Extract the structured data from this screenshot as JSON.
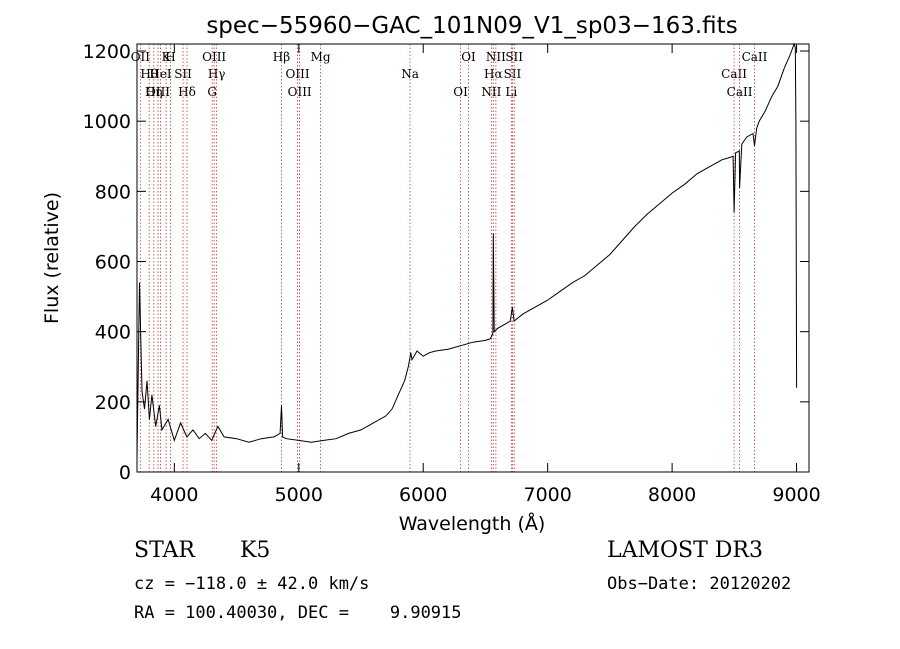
{
  "chart_data": {
    "type": "line",
    "title": "spec−55960−GAC_101N09_V1_sp03−163.fits",
    "xlabel": "Wavelength (Å)",
    "ylabel": "Flux (relative)",
    "xlim": [
      3700,
      9100
    ],
    "ylim": [
      0,
      1220
    ],
    "x_ticks": [
      4000,
      5000,
      6000,
      7000,
      8000,
      9000
    ],
    "x_tick_labels": [
      "4000",
      "5000",
      "6000",
      "7000",
      "8000",
      "9000"
    ],
    "y_ticks": [
      0,
      200,
      400,
      600,
      800,
      1000,
      1200
    ],
    "y_tick_labels": [
      "0",
      "200",
      "400",
      "600",
      "800",
      "1000",
      "1200"
    ],
    "series": [
      {
        "name": "flux",
        "x": [
          3700,
          3720,
          3740,
          3760,
          3780,
          3800,
          3820,
          3850,
          3880,
          3900,
          3950,
          4000,
          4050,
          4100,
          4150,
          4200,
          4250,
          4300,
          4350,
          4400,
          4500,
          4600,
          4700,
          4800,
          4850,
          4861,
          4870,
          4900,
          5000,
          5100,
          5200,
          5300,
          5400,
          5500,
          5600,
          5700,
          5750,
          5800,
          5850,
          5880,
          5900,
          5910,
          5950,
          6000,
          6050,
          6100,
          6200,
          6300,
          6400,
          6500,
          6540,
          6560,
          6563,
          6570,
          6600,
          6650,
          6700,
          6717,
          6730,
          6800,
          6900,
          7000,
          7100,
          7200,
          7300,
          7400,
          7500,
          7600,
          7700,
          7800,
          7900,
          8000,
          8100,
          8200,
          8300,
          8400,
          8450,
          8490,
          8498,
          8510,
          8540,
          8542,
          8560,
          8600,
          8650,
          8662,
          8680,
          8700,
          8750,
          8800,
          8850,
          8900,
          8950,
          8980,
          8990,
          8995,
          9000
        ],
        "y": [
          40,
          540,
          230,
          180,
          260,
          150,
          220,
          130,
          190,
          120,
          150,
          90,
          140,
          100,
          120,
          95,
          110,
          90,
          130,
          100,
          95,
          85,
          95,
          100,
          110,
          190,
          100,
          95,
          90,
          85,
          90,
          95,
          110,
          120,
          140,
          160,
          180,
          220,
          260,
          300,
          340,
          320,
          345,
          330,
          340,
          345,
          350,
          360,
          370,
          375,
          380,
          395,
          680,
          400,
          410,
          420,
          430,
          470,
          430,
          450,
          470,
          490,
          515,
          540,
          560,
          590,
          620,
          660,
          700,
          735,
          765,
          795,
          820,
          850,
          870,
          890,
          895,
          900,
          740,
          910,
          915,
          810,
          935,
          955,
          965,
          930,
          980,
          1000,
          1030,
          1070,
          1100,
          1150,
          1190,
          1220,
          1210,
          1000,
          240
        ]
      }
    ],
    "spectral_lines": [
      {
        "label": "OII",
        "x": 3727
      },
      {
        "label": "Hθ",
        "x": 3798
      },
      {
        "label": "OIII",
        "x": 3869
      },
      {
        "label": "K",
        "x": 3934
      },
      {
        "label": "HeI",
        "x": 3889
      },
      {
        "label": "Hη",
        "x": 3835
      },
      {
        "label": "H",
        "x": 3969
      },
      {
        "label": "SII",
        "x": 4070
      },
      {
        "label": "Hδ",
        "x": 4102
      },
      {
        "label": "OIII",
        "x": 4320
      },
      {
        "label": "Hγ",
        "x": 4340
      },
      {
        "label": "G",
        "x": 4304
      },
      {
        "label": "Hβ",
        "x": 4861
      },
      {
        "label": "OIII",
        "x": 4990
      },
      {
        "label": "OIII",
        "x": 5007
      },
      {
        "label": "Mg",
        "x": 5175
      },
      {
        "label": "Na",
        "x": 5894
      },
      {
        "label": "OI",
        "x": 6300
      },
      {
        "label": "OI",
        "x": 6364
      },
      {
        "label": "Hα",
        "x": 6563
      },
      {
        "label": "NII",
        "x": 6548
      },
      {
        "label": "NII",
        "x": 6584
      },
      {
        "label": "SII",
        "x": 6717
      },
      {
        "label": "Li",
        "x": 6708
      },
      {
        "label": "SII",
        "x": 6731
      },
      {
        "label": "CaII",
        "x": 8498
      },
      {
        "label": "CaII",
        "x": 8542
      },
      {
        "label": "CaII",
        "x": 8662
      }
    ]
  },
  "footer": {
    "object_class": "STAR",
    "subclass": "K5",
    "survey": "LAMOST DR3",
    "cz": "cz = −118.0 ± 42.0 km/s",
    "obs_date": "Obs−Date: 20120202",
    "coords": "RA = 100.40030, DEC =    9.90915"
  }
}
